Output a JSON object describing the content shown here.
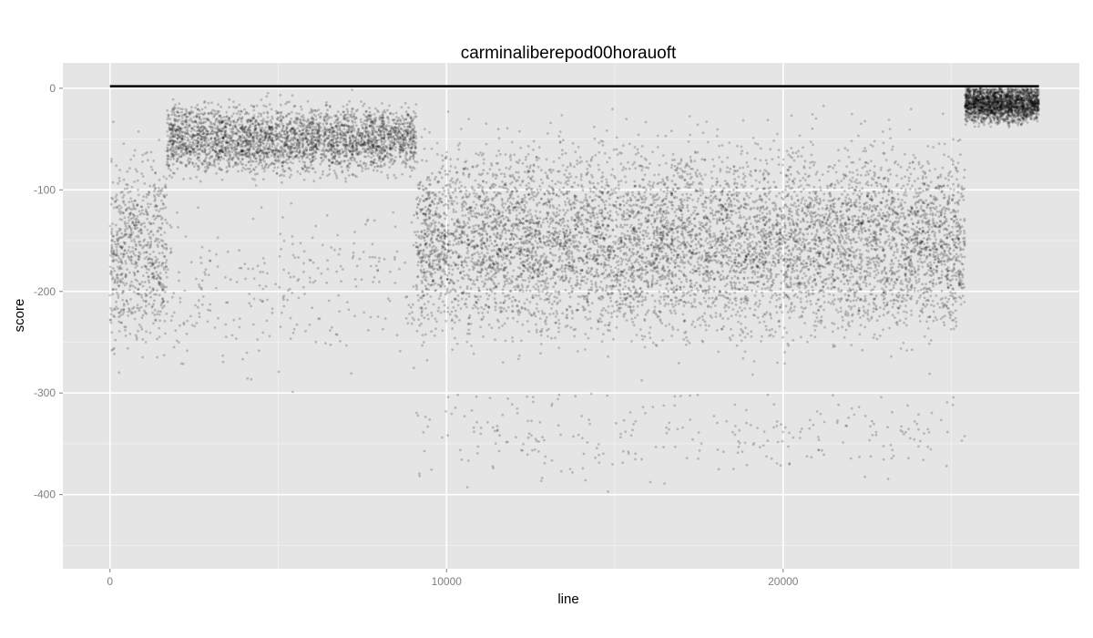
{
  "chart_data": {
    "type": "scatter",
    "title": "carminaliberepod00horauoft",
    "xlabel": "line",
    "ylabel": "score",
    "xlim": [
      -1400,
      28800
    ],
    "ylim": [
      -473,
      25
    ],
    "x_ticks": [
      0,
      10000,
      20000
    ],
    "x_tick_labels": [
      "0",
      "10000",
      "20000"
    ],
    "y_ticks": [
      0,
      -100,
      -200,
      -300,
      -400
    ],
    "y_tick_labels": [
      "0",
      "-100",
      "-200",
      "-300",
      "-400"
    ],
    "grid": true,
    "colors": {
      "panel": "#e5e5e5",
      "grid_major": "#ffffff",
      "grid_minor": "#f2f2f2",
      "points": "#000000",
      "line": "#000000",
      "tick_text": "#7f7f7f"
    },
    "series": [
      {
        "kind": "points",
        "point_opacity": 0.2,
        "approx_count": 14000,
        "density_regions": [
          {
            "x": [
              0,
              1700
            ],
            "y_range": [
              -300,
              0
            ],
            "center": -160,
            "share": 0.05
          },
          {
            "x": [
              1700,
              9100
            ],
            "y_range": [
              -110,
              0
            ],
            "center": -50,
            "share": 0.22
          },
          {
            "x": [
              1700,
              9100
            ],
            "y_range": [
              -360,
              -100
            ],
            "center": -200,
            "share": 0.02
          },
          {
            "x": [
              9100,
              25400
            ],
            "y_range": [
              -300,
              0
            ],
            "center": -150,
            "share": 0.54
          },
          {
            "x": [
              9100,
              25400
            ],
            "y_range": [
              -450,
              -300
            ],
            "center": -340,
            "share": 0.02
          },
          {
            "x": [
              25400,
              27600
            ],
            "y_range": [
              -60,
              0
            ],
            "center": -15,
            "share": 0.15
          }
        ]
      },
      {
        "kind": "line",
        "x": [
          0,
          27600
        ],
        "y": [
          2,
          2
        ]
      }
    ]
  }
}
